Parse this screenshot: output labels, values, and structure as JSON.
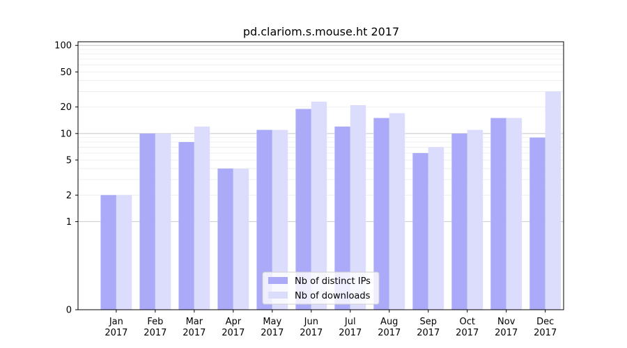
{
  "chart_data": {
    "type": "bar",
    "title": "pd.clariom.s.mouse.ht 2017",
    "xlabel": "",
    "ylabel": "",
    "y_scale": "symlog",
    "ylim": [
      0,
      110
    ],
    "y_ticks": [
      0,
      1,
      2,
      5,
      10,
      20,
      50,
      100
    ],
    "y_tick_labels": [
      "0",
      "1",
      "2",
      "5",
      "10",
      "20",
      "50",
      "100"
    ],
    "categories": [
      [
        "Jan",
        "2017"
      ],
      [
        "Feb",
        "2017"
      ],
      [
        "Mar",
        "2017"
      ],
      [
        "Apr",
        "2017"
      ],
      [
        "May",
        "2017"
      ],
      [
        "Jun",
        "2017"
      ],
      [
        "Jul",
        "2017"
      ],
      [
        "Aug",
        "2017"
      ],
      [
        "Sep",
        "2017"
      ],
      [
        "Oct",
        "2017"
      ],
      [
        "Nov",
        "2017"
      ],
      [
        "Dec",
        "2017"
      ]
    ],
    "series": [
      {
        "name": "Nb of distinct IPs",
        "color": "#aaaaf8",
        "values": [
          2,
          10,
          8,
          4,
          11,
          19,
          12,
          15,
          6,
          10,
          15,
          9
        ]
      },
      {
        "name": "Nb of downloads",
        "color": "#dcdcfc",
        "values": [
          2,
          10,
          12,
          4,
          11,
          23,
          21,
          17,
          7,
          11,
          15,
          30
        ]
      }
    ],
    "legend_position": "bottom-center",
    "grid": "horizontal, major and minor"
  }
}
